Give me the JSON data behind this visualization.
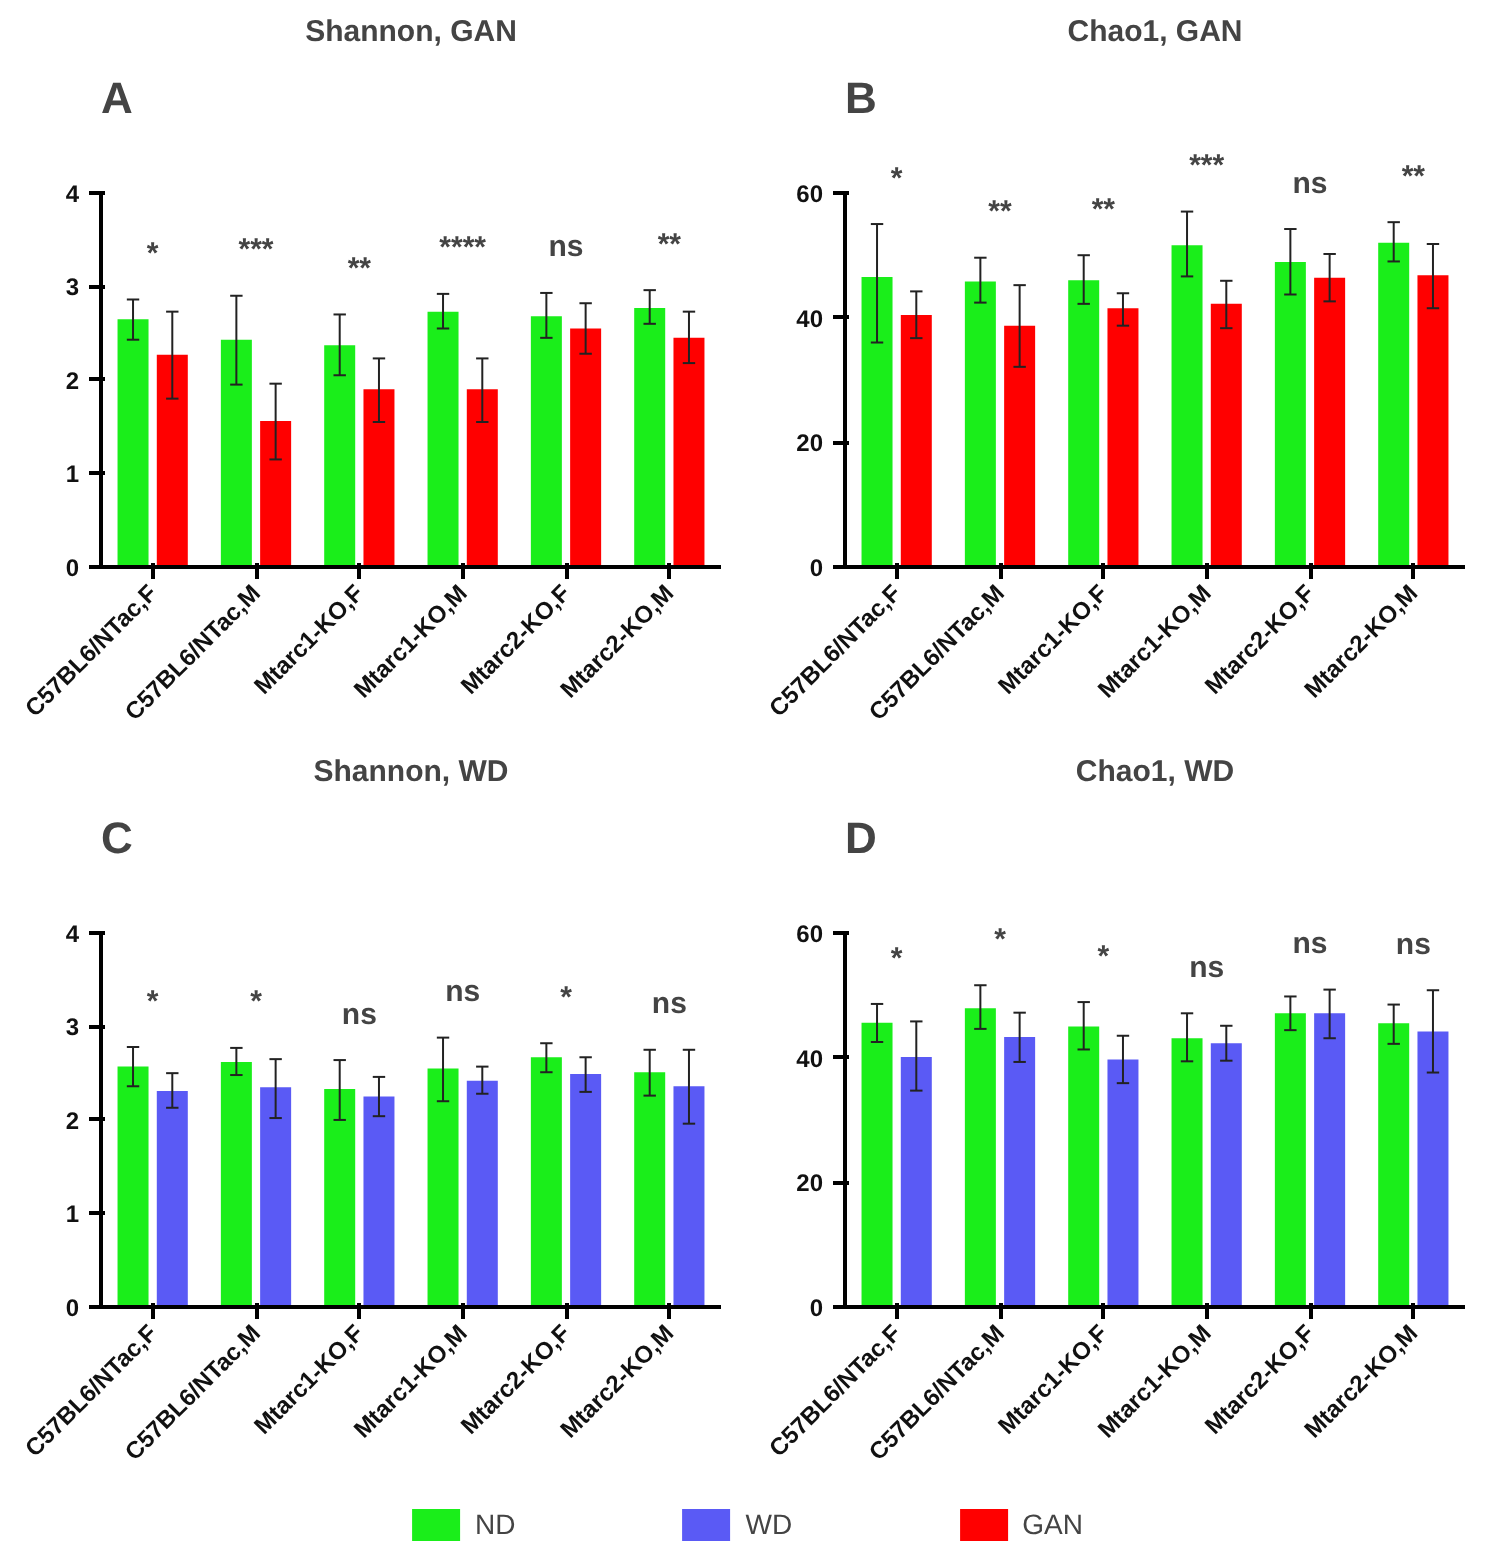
{
  "chart_data": [
    {
      "type": "bar",
      "title": "Shannon, GAN",
      "annotations": [
        "A",
        "*",
        "***",
        "**",
        "****",
        "ns",
        "**"
      ],
      "categories": [
        "C57BL6/NTac,F",
        "C57BL6/NTac,M",
        "Mtarc1-KO,F",
        "Mtarc1-KO,M",
        "Mtarc2-KO,F",
        "Mtarc2-KO,M"
      ],
      "series": [
        {
          "color": "#1aee1a",
          "values": [
            2.65,
            2.43,
            2.37,
            2.73,
            2.68,
            2.77
          ],
          "errors": [
            [
              2.43,
              2.86
            ],
            [
              1.95,
              2.9
            ],
            [
              2.05,
              2.7
            ],
            [
              2.55,
              2.92
            ],
            [
              2.45,
              2.93
            ],
            [
              2.6,
              2.96
            ]
          ]
        },
        {
          "color": "#ff0000",
          "values": [
            2.27,
            1.56,
            1.9,
            1.9,
            2.55,
            2.45
          ],
          "errors": [
            [
              1.8,
              2.73
            ],
            [
              1.15,
              1.96
            ],
            [
              1.55,
              2.23
            ],
            [
              1.55,
              2.23
            ],
            [
              2.28,
              2.82
            ],
            [
              2.18,
              2.73
            ]
          ]
        }
      ],
      "ylim": [
        0,
        4
      ],
      "yticks": [
        0,
        1,
        2,
        3,
        4
      ],
      "grid": false
    },
    {
      "type": "bar",
      "title": "Chao1, GAN",
      "annotations": [
        "B",
        "*",
        "**",
        "**",
        "***",
        "ns",
        "**"
      ],
      "categories": [
        "C57BL6/NTac,F",
        "C57BL6/NTac,M",
        "Mtarc1-KO,F",
        "Mtarc1-KO,M",
        "Mtarc2-KO,F",
        "Mtarc2-KO,M"
      ],
      "series": [
        {
          "color": "#1aee1a",
          "values": [
            46.5,
            45.8,
            46,
            51.6,
            48.9,
            52
          ],
          "errors": [
            [
              36,
              55
            ],
            [
              42.4,
              49.6
            ],
            [
              42.2,
              50
            ],
            [
              46.6,
              57
            ],
            [
              43.7,
              54.2
            ],
            [
              49,
              55.3
            ]
          ]
        },
        {
          "name": "GAN",
          "color": "#ff0000",
          "values": [
            40.4,
            38.7,
            41.5,
            42.2,
            46.4,
            46.8
          ],
          "errors": [
            [
              36.7,
              44.2
            ],
            [
              32.1,
              45.2
            ],
            [
              38.7,
              43.9
            ],
            [
              38.3,
              45.9
            ],
            [
              42.6,
              50.2
            ],
            [
              41.5,
              51.8
            ]
          ]
        }
      ],
      "ylim": [
        0,
        60
      ],
      "yticks": [
        0,
        20,
        40,
        60
      ],
      "grid": false,
      "legend": "bottom"
    },
    {
      "type": "bar",
      "title": "Shannon, WD",
      "annotations": [
        "C",
        "*",
        "*",
        "ns",
        "ns",
        "*",
        "ns"
      ],
      "categories": [
        "C57BL6/NTac,F",
        "C57BL6/NTac,M",
        "Mtarc1-KO,F",
        "Mtarc1-KO,M",
        "Mtarc2-KO,F",
        "Mtarc2-KO,M"
      ],
      "series": [
        {
          "color": "#1aee1a",
          "values": [
            2.57,
            2.62,
            2.33,
            2.55,
            2.67,
            2.51
          ],
          "errors": [
            [
              2.36,
              2.78
            ],
            [
              2.48,
              2.77
            ],
            [
              2.0,
              2.64
            ],
            [
              2.2,
              2.88
            ],
            [
              2.51,
              2.82
            ],
            [
              2.26,
              2.75
            ]
          ]
        },
        {
          "color": "#5a5af5",
          "values": [
            2.31,
            2.35,
            2.25,
            2.42,
            2.49,
            2.36
          ],
          "errors": [
            [
              2.13,
              2.5
            ],
            [
              2.02,
              2.65
            ],
            [
              2.04,
              2.46
            ],
            [
              2.28,
              2.57
            ],
            [
              2.3,
              2.67
            ],
            [
              1.96,
              2.75
            ]
          ]
        }
      ],
      "ylim": [
        0,
        4
      ],
      "yticks": [
        0,
        1,
        2,
        3,
        4
      ],
      "grid": false
    },
    {
      "type": "bar",
      "title": "Chao1, WD",
      "annotations": [
        "D",
        "*",
        "*",
        "*",
        "ns",
        "ns",
        "ns"
      ],
      "categories": [
        "C57BL6/NTac,F",
        "C57BL6/NTac,M",
        "Mtarc1-KO,F",
        "Mtarc1-KO,M",
        "Mtarc2-KO,F",
        "Mtarc2-KO,M"
      ],
      "series": [
        {
          "name": "ND",
          "color": "#1aee1a",
          "values": [
            45.6,
            47.9,
            45,
            43.1,
            47.1,
            45.5
          ],
          "errors": [
            [
              42.5,
              48.6
            ],
            [
              44.6,
              51.6
            ],
            [
              41.3,
              48.9
            ],
            [
              39.4,
              47.1
            ],
            [
              44.4,
              49.8
            ],
            [
              42.2,
              48.5
            ]
          ]
        },
        {
          "name": "WD",
          "color": "#5a5af5",
          "values": [
            40.1,
            43.3,
            39.7,
            42.3,
            47.1,
            44.2
          ],
          "errors": [
            [
              34.7,
              45.8
            ],
            [
              39.3,
              47.2
            ],
            [
              35.9,
              43.5
            ],
            [
              39.5,
              45.1
            ],
            [
              43.1,
              50.9
            ],
            [
              37.6,
              50.8
            ]
          ]
        }
      ],
      "ylim": [
        0,
        60
      ],
      "yticks": [
        0,
        20,
        40,
        60
      ],
      "grid": false,
      "legend": "bottom"
    }
  ]
}
